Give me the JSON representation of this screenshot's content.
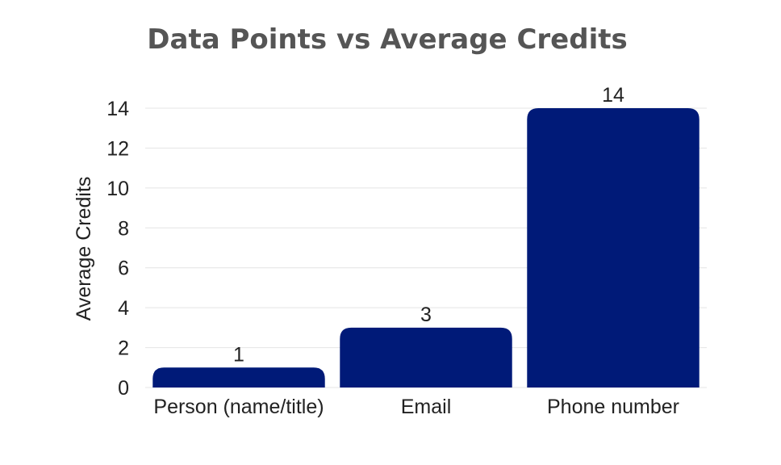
{
  "chart_data": {
    "type": "bar",
    "title": "Data Points vs Average Credits",
    "xlabel": "",
    "ylabel": "Average Credits",
    "categories": [
      "Person (name/title)",
      "Email",
      "Phone number"
    ],
    "values": [
      1,
      3,
      14
    ],
    "value_labels": [
      "1",
      "3",
      "14"
    ],
    "ylim": [
      0,
      14
    ],
    "yticks": [
      0,
      2,
      4,
      6,
      8,
      10,
      12,
      14
    ],
    "ytick_labels": [
      "0",
      "2",
      "4",
      "6",
      "8",
      "10",
      "12",
      "14"
    ],
    "grid": true,
    "legend": "none",
    "bar_color": "#001a78"
  }
}
